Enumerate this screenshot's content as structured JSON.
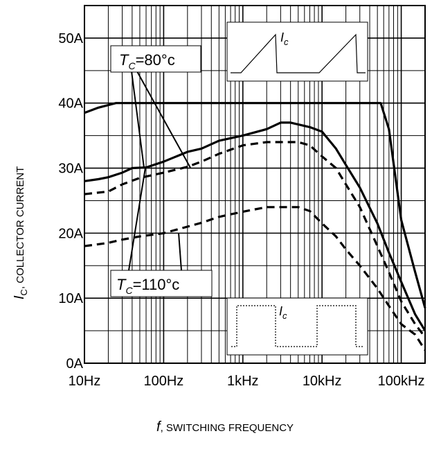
{
  "chart_data": {
    "type": "line",
    "x_scale": "log",
    "y_unit": "A",
    "xlim": [
      10,
      200000
    ],
    "ylim": [
      0,
      55
    ],
    "grid": true,
    "x_ticks": [
      {
        "value": 10,
        "label": "10Hz"
      },
      {
        "value": 100,
        "label": "100Hz"
      },
      {
        "value": 1000,
        "label": "1kHz"
      },
      {
        "value": 10000,
        "label": "10kHz"
      },
      {
        "value": 100000,
        "label": "100kHz"
      }
    ],
    "y_ticks": [
      {
        "value": 0,
        "label": "0A"
      },
      {
        "value": 10,
        "label": "10A"
      },
      {
        "value": 20,
        "label": "20A"
      },
      {
        "value": 30,
        "label": "30A"
      },
      {
        "value": 40,
        "label": "40A"
      },
      {
        "value": 50,
        "label": "50A"
      }
    ],
    "xlabel": {
      "var": "f",
      "rest": ", SWITCHING FREQUENCY"
    },
    "ylabel": {
      "var": "I",
      "sub": "C",
      "rest": ", COLLECTOR CURRENT"
    },
    "series": [
      {
        "style": "solid",
        "x": [
          10,
          15,
          25,
          50,
          100,
          1000,
          10000,
          30000,
          55000,
          70000,
          100000,
          150000,
          200000
        ],
        "y": [
          38.5,
          39.3,
          40,
          40,
          40,
          40,
          40,
          40,
          40,
          36,
          22,
          14,
          8.5
        ]
      },
      {
        "style": "solid",
        "x": [
          10,
          15,
          20,
          30,
          40,
          60,
          100,
          200,
          300,
          500,
          1000,
          2000,
          3000,
          4000,
          7000,
          10000,
          15000,
          20000,
          30000,
          50000,
          70000,
          100000,
          150000,
          200000
        ],
        "y": [
          28,
          28.3,
          28.6,
          29.3,
          30,
          30.1,
          31,
          32.5,
          33,
          34.2,
          35,
          36,
          37,
          37,
          36.3,
          35.6,
          33,
          30.5,
          27,
          21.5,
          17,
          12.5,
          7.5,
          5
        ]
      },
      {
        "style": "dashed",
        "x": [
          10,
          20,
          30,
          50,
          100,
          200,
          300,
          500,
          1000,
          2000,
          3000,
          5000,
          7000,
          10000,
          15000,
          20000,
          30000,
          50000,
          70000,
          100000,
          150000,
          200000
        ],
        "y": [
          26,
          26.4,
          27.5,
          28.5,
          29.3,
          30.2,
          31,
          32.2,
          33.5,
          34,
          34,
          34,
          33.5,
          31.8,
          30,
          27.5,
          24,
          18,
          14,
          9.5,
          6,
          4
        ]
      },
      {
        "style": "dashed",
        "x": [
          10,
          20,
          30,
          50,
          100,
          200,
          300,
          500,
          1000,
          2000,
          3000,
          5000,
          7000,
          10000,
          15000,
          20000,
          30000,
          50000,
          70000,
          100000,
          150000,
          200000
        ],
        "y": [
          18,
          18.5,
          19,
          19.5,
          20,
          21,
          21.6,
          22.5,
          23.3,
          24,
          24,
          24,
          23.4,
          21.5,
          19.5,
          17.5,
          15,
          11.5,
          8.8,
          6,
          4.4,
          2
        ]
      }
    ],
    "annotations": [
      {
        "name": "tc-80-label",
        "var": "T",
        "sub": "C",
        "rest": "=80°c"
      },
      {
        "name": "tc-110-label",
        "var": "T",
        "sub": "C",
        "rest": "=110°c"
      }
    ],
    "insets": [
      {
        "name": "inset-sawtooth",
        "var": "I",
        "sub": "c"
      },
      {
        "name": "inset-square",
        "var": "I",
        "sub": "c"
      }
    ]
  }
}
